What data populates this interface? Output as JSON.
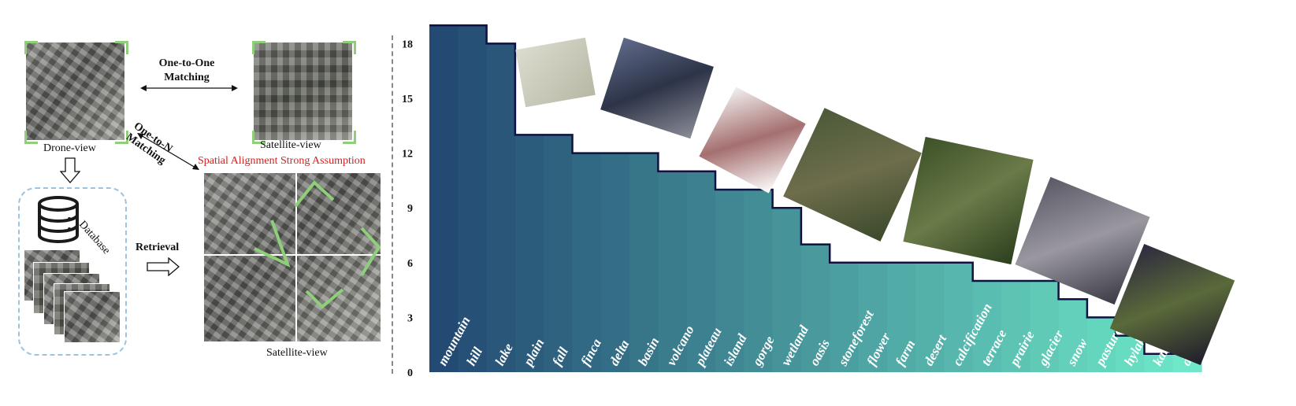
{
  "left_panel": {
    "drone_view_label": "Drone-view",
    "satellite_view_label_top": "Satellite-view",
    "one_to_one_label": "One-to-One\nMatching",
    "one_to_n_label": "One-to-N\nMatching",
    "assumption_label": "Spatial Alignment Strong Assumption",
    "database_label": "Database",
    "retrieval_label": "Retrieval",
    "satellite_view_label_bottom": "Satellite-view",
    "colors": {
      "accent_green": "#8fcf7a",
      "assumption_red": "#d42020",
      "database_border": "#9cc3e0"
    }
  },
  "chart_data": {
    "type": "bar",
    "categories": [
      "mountain",
      "hill",
      "lake",
      "plain",
      "fall",
      "finca",
      "delta",
      "basin",
      "volcano",
      "plateau",
      "island",
      "gorge",
      "wetland",
      "oasis",
      "stoneforest",
      "flower",
      "farm",
      "desert",
      "calcification",
      "terrace",
      "prairie",
      "glacier",
      "snow",
      "pasture",
      "hylake",
      "karst",
      "danxia"
    ],
    "values": [
      19,
      19,
      18,
      13,
      13,
      12,
      12,
      12,
      11,
      11,
      10,
      10,
      9,
      7,
      6,
      6,
      6,
      6,
      6,
      5,
      5,
      5,
      4,
      3,
      2,
      1,
      1
    ],
    "yticks": [
      0,
      3,
      6,
      9,
      12,
      15,
      18
    ],
    "ylim": [
      0,
      19
    ],
    "colors": {
      "start": "#234a72",
      "end": "#6ee8c8",
      "outline": "#0f1240"
    }
  }
}
